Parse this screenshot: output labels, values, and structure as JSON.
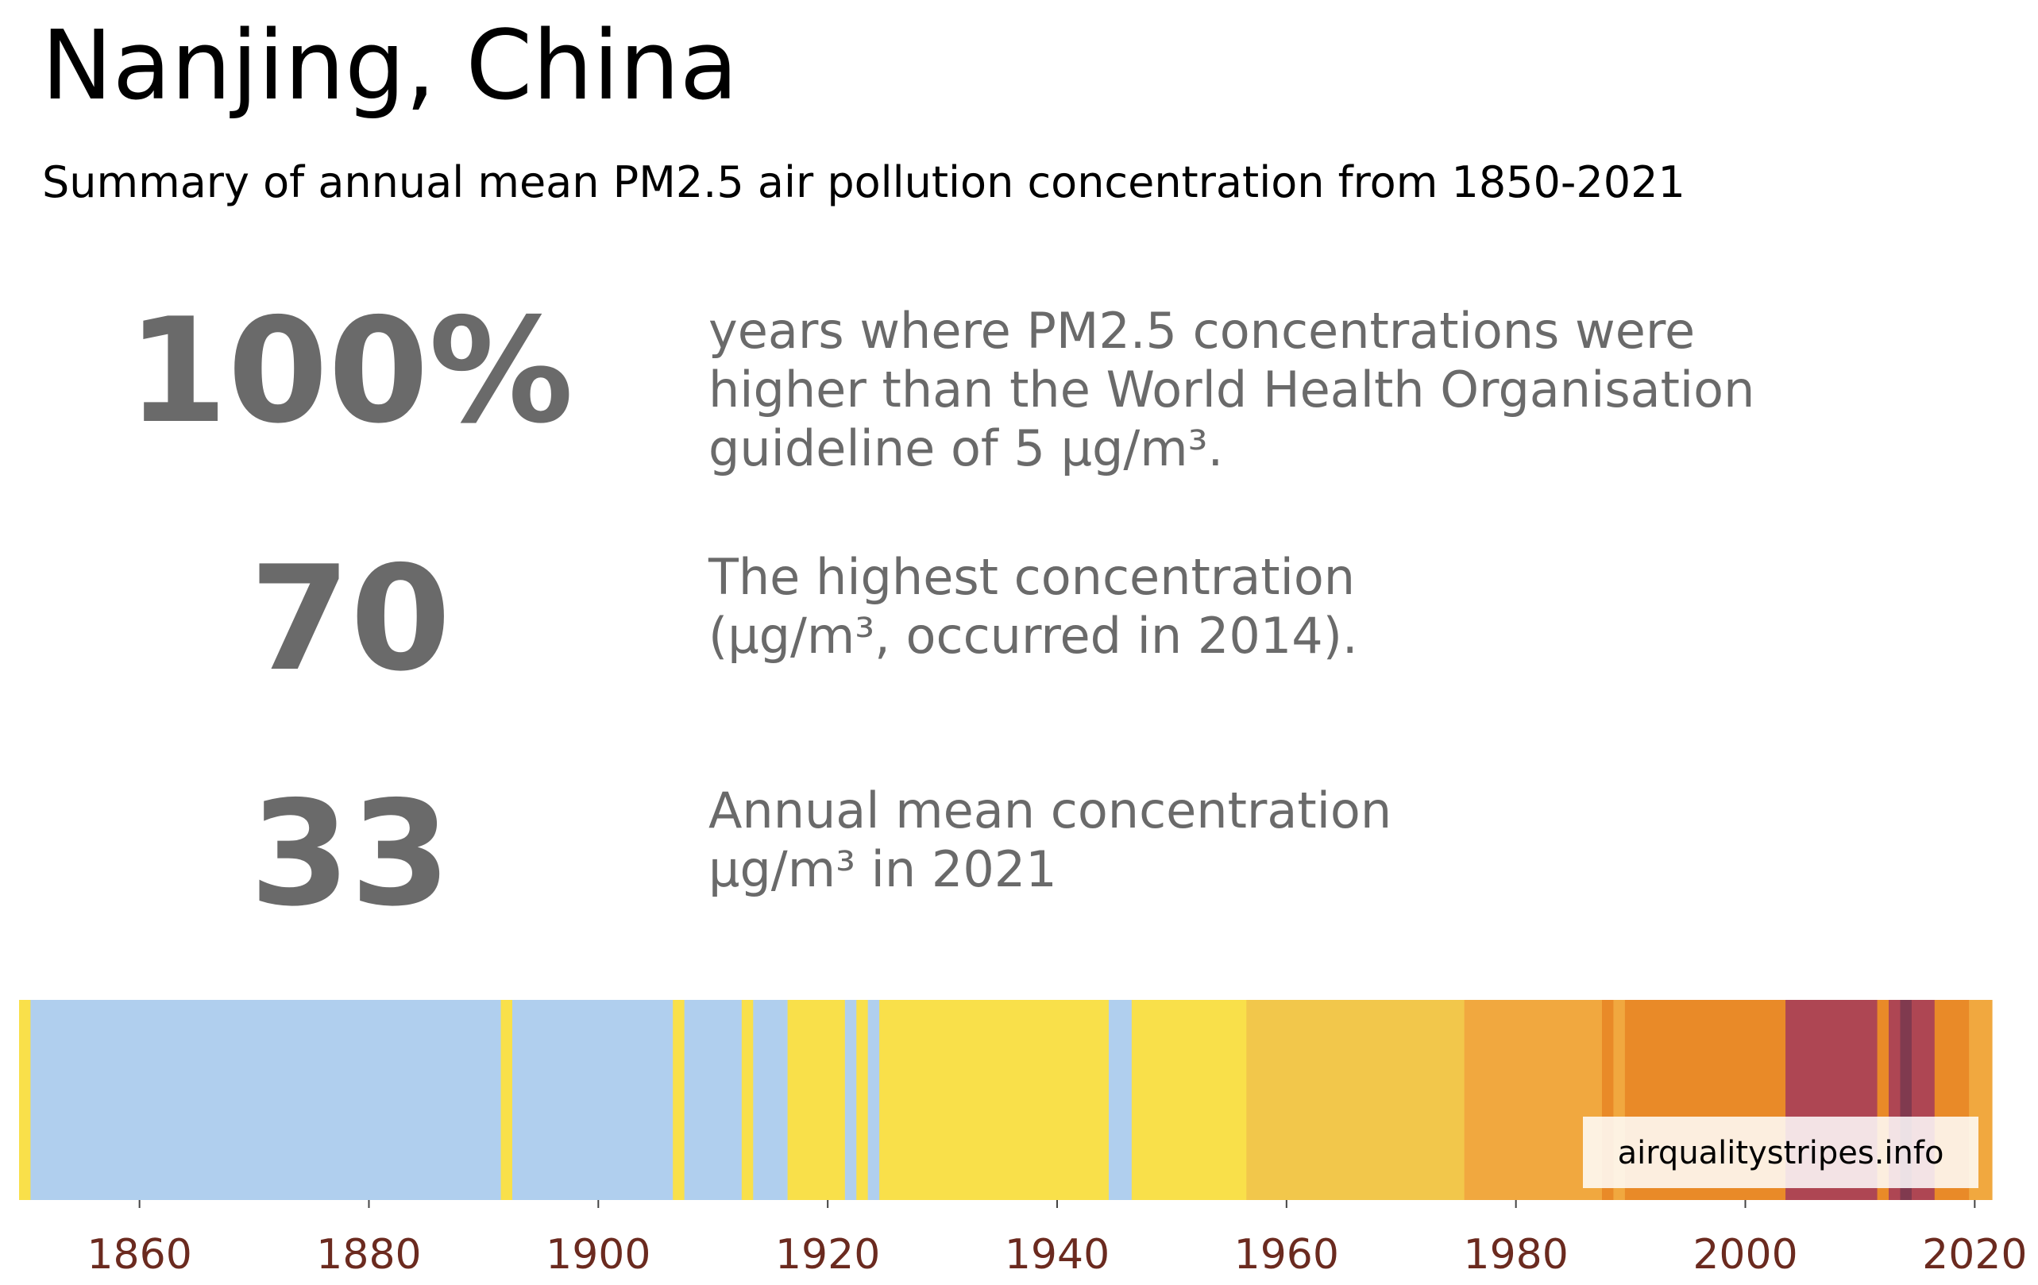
{
  "header": {
    "title": "Nanjing, China",
    "subtitle": "Summary of annual mean PM2.5 air pollution concentration from 1850-2021"
  },
  "stats": [
    {
      "value": "100%",
      "lines": [
        "years where PM2.5 concentrations were",
        "higher than the World Health Organisation",
        "guideline of 5 µg/m³."
      ]
    },
    {
      "value": "70",
      "lines": [
        "The highest concentration",
        "(µg/m³, occurred in 2014)."
      ]
    },
    {
      "value": "33",
      "lines": [
        "Annual mean concentration",
        "µg/m³ in 2021"
      ]
    }
  ],
  "colors": {
    "very_low": "#b0cfee",
    "low": "#f9e04a",
    "moderate": "#f2c74b",
    "elevated": "#f1a83f",
    "high": "#e98a28",
    "very_high": "#ae4653",
    "extreme": "#803a4f",
    "tick_label": "#6b2a1f"
  },
  "chart_data": {
    "type": "heatmap",
    "x_range": [
      1850,
      2021
    ],
    "x_ticks": [
      "1860",
      "1880",
      "1900",
      "1920",
      "1940",
      "1960",
      "1980",
      "2000",
      "2020"
    ],
    "segments": [
      {
        "start": 1850,
        "end": 1850,
        "level": "low"
      },
      {
        "start": 1851,
        "end": 1891,
        "level": "very_low"
      },
      {
        "start": 1892,
        "end": 1892,
        "level": "low"
      },
      {
        "start": 1893,
        "end": 1906,
        "level": "very_low"
      },
      {
        "start": 1907,
        "end": 1907,
        "level": "low"
      },
      {
        "start": 1908,
        "end": 1912,
        "level": "very_low"
      },
      {
        "start": 1913,
        "end": 1913,
        "level": "low"
      },
      {
        "start": 1914,
        "end": 1916,
        "level": "very_low"
      },
      {
        "start": 1917,
        "end": 1921,
        "level": "low"
      },
      {
        "start": 1922,
        "end": 1922,
        "level": "very_low"
      },
      {
        "start": 1923,
        "end": 1923,
        "level": "low"
      },
      {
        "start": 1924,
        "end": 1924,
        "level": "very_low"
      },
      {
        "start": 1925,
        "end": 1944,
        "level": "low"
      },
      {
        "start": 1945,
        "end": 1946,
        "level": "very_low"
      },
      {
        "start": 1947,
        "end": 1956,
        "level": "low"
      },
      {
        "start": 1957,
        "end": 1975,
        "level": "moderate"
      },
      {
        "start": 1976,
        "end": 1987,
        "level": "elevated"
      },
      {
        "start": 1988,
        "end": 1988,
        "level": "high"
      },
      {
        "start": 1989,
        "end": 1989,
        "level": "elevated"
      },
      {
        "start": 1990,
        "end": 2003,
        "level": "high"
      },
      {
        "start": 2004,
        "end": 2011,
        "level": "very_high"
      },
      {
        "start": 2012,
        "end": 2012,
        "level": "high"
      },
      {
        "start": 2013,
        "end": 2013,
        "level": "very_high"
      },
      {
        "start": 2014,
        "end": 2014,
        "level": "extreme"
      },
      {
        "start": 2015,
        "end": 2016,
        "level": "very_high"
      },
      {
        "start": 2017,
        "end": 2019,
        "level": "high"
      },
      {
        "start": 2020,
        "end": 2021,
        "level": "elevated"
      }
    ]
  },
  "watermark": "airqualitystripes.info"
}
